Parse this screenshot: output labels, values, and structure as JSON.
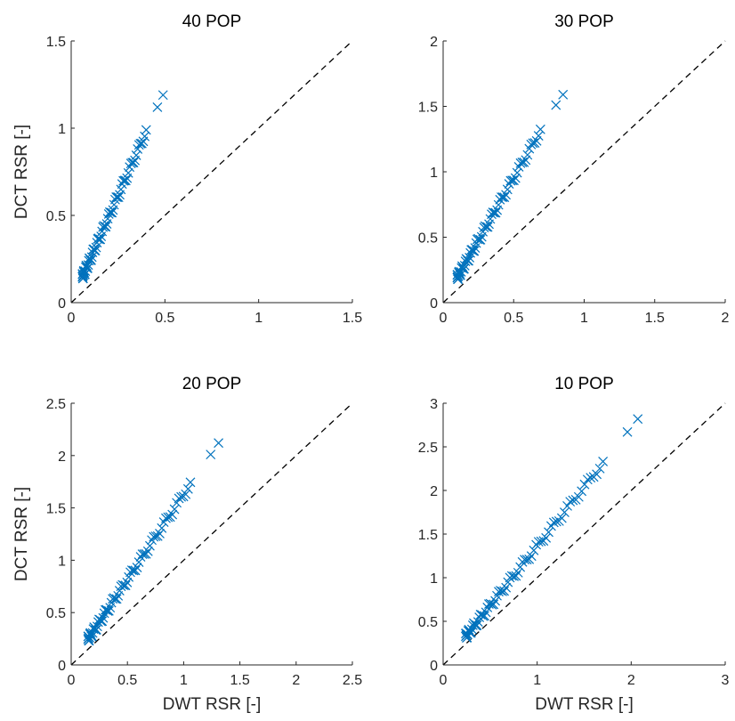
{
  "chart_data": [
    {
      "type": "scatter",
      "title": "40 POP",
      "xlabel": "",
      "ylabel": "DCT RSR [-]",
      "xlim": [
        0,
        1.5
      ],
      "ylim": [
        0,
        1.5
      ],
      "xticks": [
        0,
        0.5,
        1,
        1.5
      ],
      "yticks": [
        0,
        0.5,
        1,
        1.5
      ],
      "x_tick_labels": [
        "0",
        "0.5",
        "1",
        "1.5"
      ],
      "y_tick_labels": [
        "0",
        "0.5",
        "1",
        "1.5"
      ],
      "marker": "x",
      "marker_color": "#0072BD",
      "reference_line": "y = x (dashed black)",
      "slope": 2.45,
      "x_range": [
        0.06,
        0.4
      ],
      "outliers": [
        {
          "x": 0.46,
          "y": 1.12
        },
        {
          "x": 0.49,
          "y": 1.19
        }
      ]
    },
    {
      "type": "scatter",
      "title": "30 POP",
      "xlabel": "",
      "ylabel": "",
      "xlim": [
        0,
        2
      ],
      "ylim": [
        0,
        2
      ],
      "xticks": [
        0,
        0.5,
        1,
        1.5,
        2
      ],
      "yticks": [
        0,
        0.5,
        1,
        1.5,
        2
      ],
      "x_tick_labels": [
        "0",
        "0.5",
        "1",
        "1.5",
        "2"
      ],
      "y_tick_labels": [
        "0",
        "0.5",
        "1",
        "1.5",
        "2"
      ],
      "marker": "x",
      "marker_color": "#0072BD",
      "reference_line": "y = x (dashed black)",
      "slope": 1.9,
      "x_range": [
        0.1,
        0.69
      ],
      "outliers": [
        {
          "x": 0.8,
          "y": 1.51
        },
        {
          "x": 0.85,
          "y": 1.59
        }
      ]
    },
    {
      "type": "scatter",
      "title": "20 POP",
      "xlabel": "DWT RSR [-]",
      "ylabel": "DCT RSR [-]",
      "xlim": [
        0,
        2.5
      ],
      "ylim": [
        0,
        2.5
      ],
      "xticks": [
        0,
        0.5,
        1,
        1.5,
        2,
        2.5
      ],
      "yticks": [
        0,
        0.5,
        1,
        1.5,
        2,
        2.5
      ],
      "x_tick_labels": [
        "0",
        "0.5",
        "1",
        "1.5",
        "2",
        "2.5"
      ],
      "y_tick_labels": [
        "0",
        "0.5",
        "1",
        "1.5",
        "2",
        "2.5"
      ],
      "marker": "x",
      "marker_color": "#0072BD",
      "reference_line": "y = x (dashed black)",
      "slope": 1.63,
      "x_range": [
        0.15,
        1.06
      ],
      "outliers": [
        {
          "x": 1.24,
          "y": 2.01
        },
        {
          "x": 1.31,
          "y": 2.12
        }
      ]
    },
    {
      "type": "scatter",
      "title": "10 POP",
      "xlabel": "DWT RSR [-]",
      "ylabel": "",
      "xlim": [
        0,
        3
      ],
      "ylim": [
        0,
        3
      ],
      "xticks": [
        0,
        1,
        2,
        3
      ],
      "yticks": [
        0,
        0.5,
        1,
        1.5,
        2,
        2.5,
        3
      ],
      "x_tick_labels": [
        "0",
        "1",
        "2",
        "3"
      ],
      "y_tick_labels": [
        "0",
        "0.5",
        "1",
        "1.5",
        "2",
        "2.5",
        "3"
      ],
      "marker": "x",
      "marker_color": "#0072BD",
      "reference_line": "y = x (dashed black)",
      "slope": 1.36,
      "x_range": [
        0.24,
        1.7
      ],
      "outliers": [
        {
          "x": 1.96,
          "y": 2.67
        },
        {
          "x": 2.07,
          "y": 2.82
        }
      ]
    }
  ]
}
